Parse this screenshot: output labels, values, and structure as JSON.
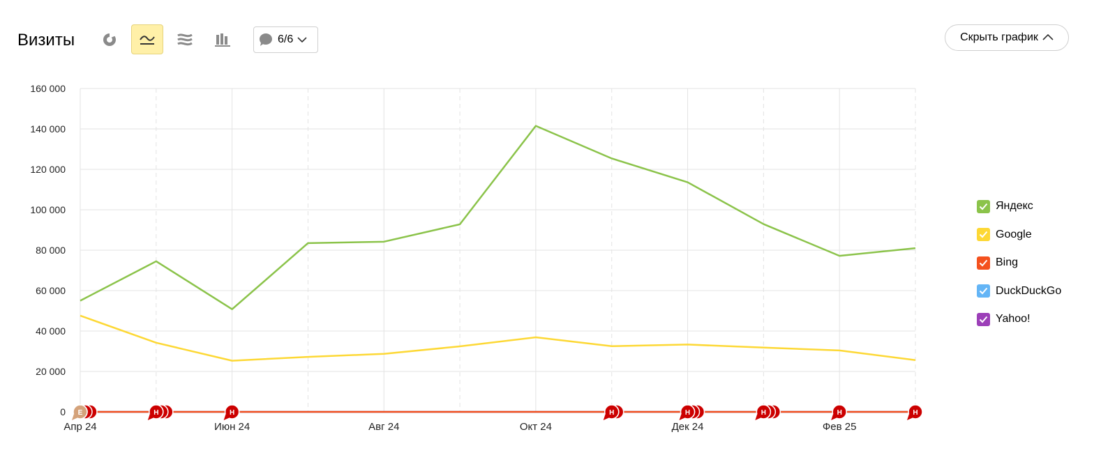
{
  "header": {
    "title": "Визиты",
    "annotations_label": "6/6",
    "hide_chart_label": "Скрыть график"
  },
  "toolbar": {
    "icons": [
      "pie-chart-icon",
      "line-chart-icon",
      "area-chart-icon",
      "bar-chart-icon"
    ],
    "active": "line-chart-icon"
  },
  "legend": [
    {
      "name": "Яндекс",
      "color": "#8bc34a"
    },
    {
      "name": "Google",
      "color": "#fdd835"
    },
    {
      "name": "Bing",
      "color": "#f4511e"
    },
    {
      "name": "DuckDuckGo",
      "color": "#64b5f6"
    },
    {
      "name": "Yahoo!",
      "color": "#9c3fb8"
    }
  ],
  "chart_data": {
    "type": "line",
    "x": [
      "2024-04",
      "2024-05",
      "2024-06",
      "2024-07",
      "2024-08",
      "2024-09",
      "2024-10",
      "2024-11",
      "2024-12",
      "2025-01",
      "2025-02",
      "2025-03"
    ],
    "xticks": [
      "Апр 24",
      "Июн 24",
      "Авг 24",
      "Окт 24",
      "Дек 24",
      "Фев 25"
    ],
    "yticks": [
      "0",
      "20 000",
      "40 000",
      "60 000",
      "80 000",
      "100 000",
      "120 000",
      "140 000",
      "160 000"
    ],
    "ylim": [
      0,
      160000
    ],
    "grid": true,
    "legend_position": "right",
    "series": [
      {
        "name": "Яндекс",
        "color": "#8bc34a",
        "values": [
          55000,
          74500,
          50800,
          83500,
          84200,
          92800,
          141500,
          125400,
          113600,
          92900,
          77200,
          81000
        ]
      },
      {
        "name": "Google",
        "color": "#fdd835",
        "values": [
          47600,
          34200,
          25300,
          27200,
          28700,
          32400,
          36900,
          32500,
          33300,
          31800,
          30400,
          25600
        ]
      },
      {
        "name": "Bing",
        "color": "#f4511e",
        "values": [
          0,
          0,
          0,
          0,
          0,
          0,
          0,
          0,
          0,
          0,
          0,
          0
        ]
      },
      {
        "name": "DuckDuckGo",
        "color": "#64b5f6",
        "values": [
          0,
          0,
          0,
          0,
          0,
          0,
          0,
          0,
          0,
          0,
          0,
          0
        ]
      },
      {
        "name": "Yahoo!",
        "color": "#9c3fb8",
        "values": [
          0,
          0,
          0,
          0,
          0,
          0,
          0,
          0,
          0,
          0,
          0,
          0
        ]
      }
    ],
    "markers": [
      {
        "x": "2024-04",
        "labels": [
          "Е"
        ],
        "stack": 3
      },
      {
        "x": "2024-05",
        "labels": [
          "Н"
        ],
        "stack": 3
      },
      {
        "x": "2024-06",
        "labels": [
          "Н"
        ],
        "stack": 1
      },
      {
        "x": "2024-11",
        "labels": [
          "Н"
        ],
        "stack": 2
      },
      {
        "x": "2024-12",
        "labels": [
          "Н"
        ],
        "stack": 3
      },
      {
        "x": "2025-01",
        "labels": [
          "Н"
        ],
        "stack": 3
      },
      {
        "x": "2025-02",
        "labels": [
          "Н"
        ],
        "stack": 1
      },
      {
        "x": "2025-03",
        "labels": [
          "Н"
        ],
        "stack": 1
      }
    ]
  }
}
